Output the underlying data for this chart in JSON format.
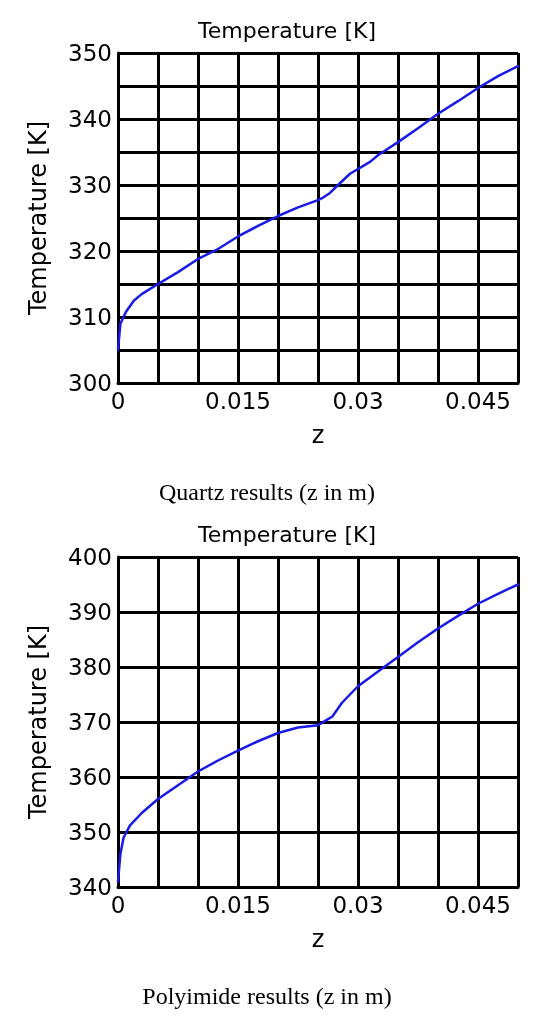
{
  "chart_data": [
    {
      "type": "line",
      "title": "Temperature [K]",
      "xlabel": "z",
      "ylabel": "Temperature [K]",
      "annotations": [
        "Quartz results (z in m)"
      ],
      "color": "#1a1ae6",
      "marker": "none",
      "line_style": "solid",
      "grid": true,
      "x": [
        0,
        0.0003,
        0.001,
        0.002,
        0.003,
        0.005,
        0.0075,
        0.01,
        0.0125,
        0.015,
        0.0175,
        0.02,
        0.0225,
        0.025,
        0.0255,
        0.0265,
        0.0275,
        0.029,
        0.0315,
        0.0325,
        0.035,
        0.0375,
        0.04,
        0.0425,
        0.045,
        0.0475,
        0.05
      ],
      "values": [
        305,
        309,
        310.8,
        312.5,
        313.5,
        315,
        316.8,
        318.8,
        320.3,
        322.2,
        323.8,
        325.3,
        326.6,
        327.7,
        328,
        328.8,
        330,
        331.7,
        333.5,
        334.5,
        336.5,
        338.6,
        340.8,
        342.7,
        344.7,
        346.5,
        348
      ],
      "xlim": [
        0,
        0.05
      ],
      "xticks": [
        0,
        {
          "value": 0.005,
          "label": null
        },
        {
          "value": 0.01,
          "label": null
        },
        0.015,
        {
          "value": 0.02,
          "label": null
        },
        {
          "value": 0.025,
          "label": null
        },
        0.03,
        {
          "value": 0.035,
          "label": null
        },
        {
          "value": 0.04,
          "label": null
        },
        0.045,
        {
          "value": 0.05,
          "label": null
        }
      ],
      "ylim": [
        300,
        350
      ],
      "yticks": [
        300,
        {
          "value": 305,
          "label": null
        },
        310,
        {
          "value": 315,
          "label": null
        },
        320,
        {
          "value": 325,
          "label": null
        },
        330,
        {
          "value": 335,
          "label": null
        },
        340,
        {
          "value": 345,
          "label": null
        },
        350
      ]
    },
    {
      "type": "line",
      "title": "Temperature [K]",
      "xlabel": "z",
      "ylabel": "Temperature [K]",
      "annotations": [
        "Polyimide results (z in m)"
      ],
      "color": "#1a1ae6",
      "marker": "none",
      "line_style": "solid",
      "grid": true,
      "x": [
        0,
        0.0003,
        0.0007,
        0.0015,
        0.003,
        0.005,
        0.0075,
        0.01,
        0.0125,
        0.015,
        0.0175,
        0.02,
        0.0225,
        0.025,
        0.026,
        0.0268,
        0.028,
        0.03,
        0.0325,
        0.035,
        0.0375,
        0.04,
        0.0425,
        0.045,
        0.0475,
        0.05
      ],
      "values": [
        341,
        346,
        349,
        351.2,
        353.5,
        356,
        358.5,
        361,
        363,
        364.8,
        366.5,
        368,
        369,
        369.4,
        370.3,
        371,
        373.5,
        376.5,
        379.2,
        381.8,
        384.5,
        387,
        389.3,
        391.5,
        393.3,
        395
      ],
      "xlim": [
        0,
        0.05
      ],
      "xticks": [
        0,
        {
          "value": 0.005,
          "label": null
        },
        {
          "value": 0.01,
          "label": null
        },
        0.015,
        {
          "value": 0.02,
          "label": null
        },
        {
          "value": 0.025,
          "label": null
        },
        0.03,
        {
          "value": 0.035,
          "label": null
        },
        {
          "value": 0.04,
          "label": null
        },
        0.045,
        {
          "value": 0.05,
          "label": null
        }
      ],
      "ylim": [
        340,
        400
      ],
      "yticks": [
        340,
        350,
        360,
        370,
        380,
        390,
        400
      ]
    }
  ]
}
